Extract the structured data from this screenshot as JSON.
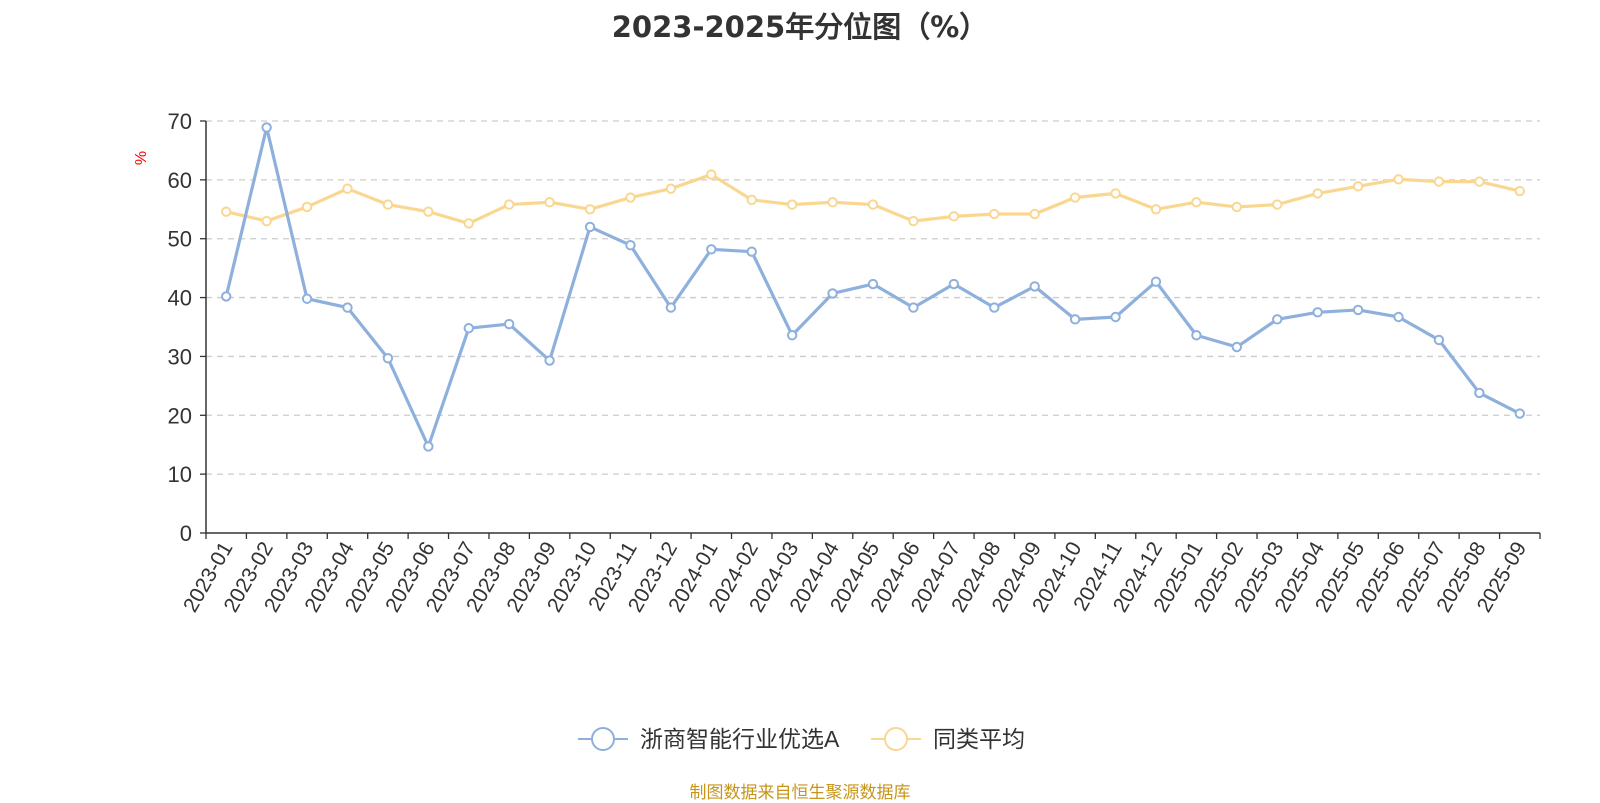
{
  "chart_data": {
    "type": "line",
    "title": "2023-2025年分位图（%）",
    "ylabel": "%",
    "ylim": [
      0,
      70
    ],
    "yticks": [
      0,
      10,
      20,
      30,
      40,
      50,
      60,
      70
    ],
    "grid": true,
    "legend_position": "bottom-center",
    "categories": [
      "2023-01",
      "2023-02",
      "2023-03",
      "2023-04",
      "2023-05",
      "2023-06",
      "2023-07",
      "2023-08",
      "2023-09",
      "2023-10",
      "2023-11",
      "2023-12",
      "2024-01",
      "2024-02",
      "2024-03",
      "2024-04",
      "2024-05",
      "2024-06",
      "2024-07",
      "2024-08",
      "2024-09",
      "2024-10",
      "2024-11",
      "2024-12",
      "2025-01",
      "2025-02",
      "2025-03",
      "2025-04",
      "2025-05",
      "2025-06",
      "2025-07",
      "2025-08",
      "2025-09"
    ],
    "series": [
      {
        "name": "浙商智能行业优选A",
        "color": "#8eb0dc",
        "values": [
          40.2,
          68.9,
          39.8,
          38.3,
          29.7,
          14.7,
          34.8,
          35.5,
          29.3,
          52.0,
          48.9,
          38.3,
          48.2,
          47.8,
          33.6,
          40.7,
          42.3,
          38.3,
          42.3,
          38.3,
          41.9,
          36.3,
          36.7,
          42.7,
          33.6,
          31.6,
          36.3,
          37.5,
          37.9,
          36.7,
          32.8,
          23.8,
          20.3
        ]
      },
      {
        "name": "同类平均",
        "color": "#fad791",
        "values": [
          54.6,
          53.0,
          55.4,
          58.5,
          55.8,
          54.6,
          52.6,
          55.8,
          56.2,
          55.0,
          57.0,
          58.5,
          60.9,
          56.6,
          55.8,
          56.2,
          55.8,
          53.0,
          53.8,
          54.2,
          54.2,
          57.0,
          57.7,
          55.0,
          56.2,
          55.4,
          55.8,
          57.7,
          58.9,
          60.1,
          59.7,
          59.7,
          58.1
        ]
      }
    ]
  },
  "source": {
    "text": "制图数据来自恒生聚源数据库",
    "color": "#c8951a"
  }
}
